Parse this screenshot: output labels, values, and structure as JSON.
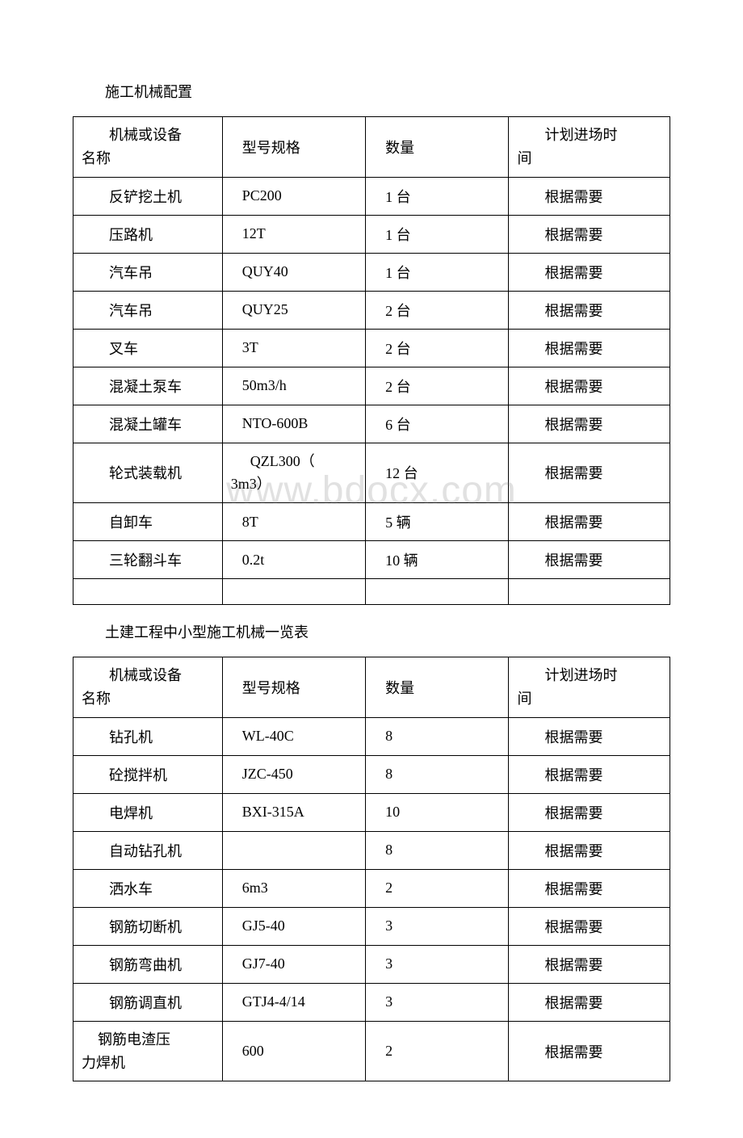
{
  "watermark": "www.bdocx.com",
  "tables": [
    {
      "title": "施工机械配置",
      "header": {
        "c1_line1": "机械或设备",
        "c1_line2": "名称",
        "c2": "型号规格",
        "c3": "数量",
        "c4_line1": "计划进场时",
        "c4_line2": "间"
      },
      "rows": [
        {
          "name": "反铲挖土机",
          "model": "PC200",
          "qty": "1 台",
          "plan": "根据需要"
        },
        {
          "name": "压路机",
          "model": "12T",
          "qty": "1 台",
          "plan": "根据需要"
        },
        {
          "name": "汽车吊",
          "model": "QUY40",
          "qty": "1 台",
          "plan": "根据需要"
        },
        {
          "name": "汽车吊",
          "model": "QUY25",
          "qty": "2 台",
          "plan": "根据需要"
        },
        {
          "name": "叉车",
          "model": "3T",
          "qty": "2 台",
          "plan": "根据需要"
        },
        {
          "name": "混凝土泵车",
          "model": "50m3/h",
          "qty": "2 台",
          "plan": "根据需要"
        },
        {
          "name": "混凝土罐车",
          "model": "NTO-600B",
          "qty": "6 台",
          "plan": "根据需要"
        },
        {
          "name": "轮式装载机",
          "model_line1": "QZL300（",
          "model_line2": "3m3）",
          "qty": "12 台",
          "plan": "根据需要",
          "tall": true
        },
        {
          "name": "自卸车",
          "model": "8T",
          "qty": "5 辆",
          "plan": "根据需要"
        },
        {
          "name": "三轮翻斗车",
          "model": "0.2t",
          "qty": "10 辆",
          "plan": "根据需要"
        }
      ],
      "emptyTrailing": true
    },
    {
      "title": "土建工程中小型施工机械一览表",
      "header": {
        "c1_line1": "机械或设备",
        "c1_line2": "名称",
        "c2": "型号规格",
        "c3": "数量",
        "c4_line1": "计划进场时",
        "c4_line2": "间"
      },
      "rows": [
        {
          "name": "钻孔机",
          "model": "WL-40C",
          "qty": "8",
          "plan": "根据需要"
        },
        {
          "name": "砼搅拌机",
          "model": "JZC-450",
          "qty": "8",
          "plan": "根据需要"
        },
        {
          "name": "电焊机",
          "model": "BXI-315A",
          "qty": "10",
          "plan": "根据需要"
        },
        {
          "name": "自动钻孔机",
          "model": "",
          "qty": "8",
          "plan": "根据需要"
        },
        {
          "name": "洒水车",
          "model": "6m3",
          "qty": "2",
          "plan": "根据需要"
        },
        {
          "name": "钢筋切断机",
          "model": "GJ5-40",
          "qty": "3",
          "plan": "根据需要"
        },
        {
          "name": "钢筋弯曲机",
          "model": "GJ7-40",
          "qty": "3",
          "plan": "根据需要"
        },
        {
          "name": "钢筋调直机",
          "model": "GTJ4-4/14",
          "qty": "3",
          "plan": "根据需要"
        },
        {
          "name_line1": "钢筋电渣压",
          "name_line2": "力焊机",
          "model": "600",
          "qty": "2",
          "plan": "根据需要",
          "nameWrap": true
        }
      ],
      "emptyTrailing": false
    }
  ]
}
